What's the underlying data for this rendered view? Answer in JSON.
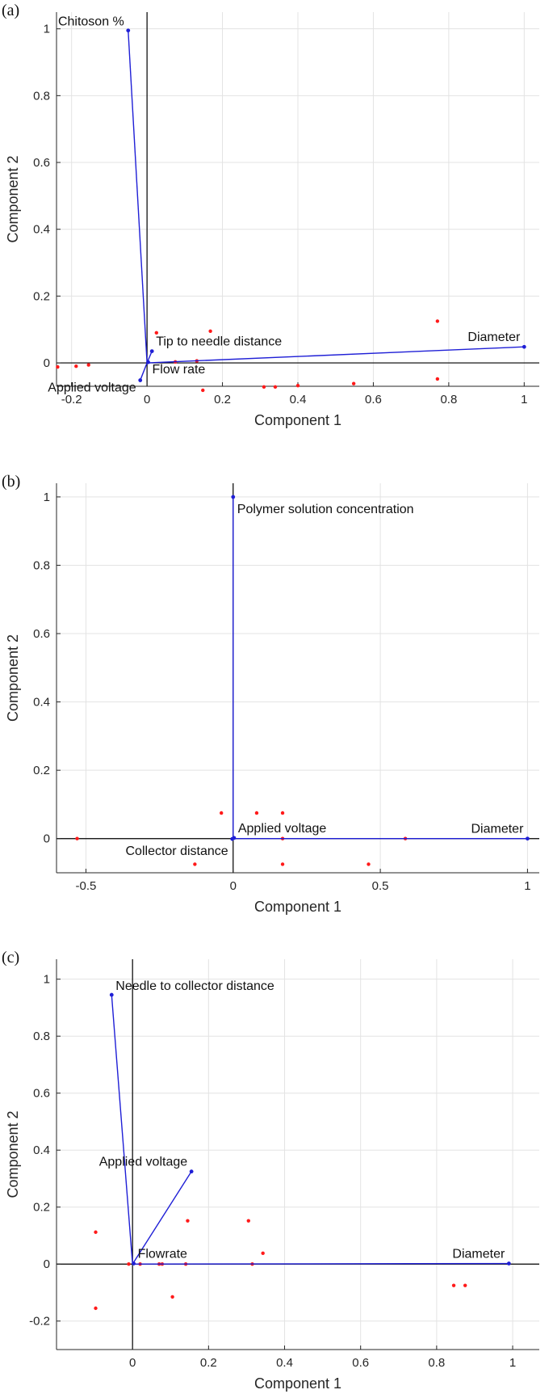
{
  "colors": {
    "vector": "#1f1fd6",
    "point": "#ff1a1a",
    "grid": "#e3e3e3",
    "axis": "#262626",
    "zero_line": "#000000"
  },
  "chart_data": [
    {
      "type": "scatter",
      "panel_label": "(a)",
      "title": "",
      "xlabel": "Component 1",
      "ylabel": "Component 2",
      "xlim": [
        -0.24,
        1.04
      ],
      "ylim": [
        -0.07,
        1.05
      ],
      "xticks": [
        -0.2,
        0,
        0.2,
        0.4,
        0.6,
        0.8,
        1
      ],
      "xtick_labels": [
        "-0.2",
        "0",
        "0.2",
        "0.4",
        "0.6",
        "0.8",
        "1"
      ],
      "yticks": [
        0,
        0.2,
        0.4,
        0.6,
        0.8,
        1
      ],
      "ytick_labels": [
        "0",
        "0.2",
        "0.4",
        "0.6",
        "0.8",
        "1"
      ],
      "grid": true,
      "vectors": [
        {
          "label": "Chitoson %",
          "x": -0.05,
          "y": 0.995,
          "anchor": "end"
        },
        {
          "label": "Tip to needle distance",
          "x": 0.013,
          "y": 0.035,
          "anchor": "start"
        },
        {
          "label": "Flow rate",
          "x": 0.003,
          "y": 0.002,
          "anchor": "start"
        },
        {
          "label": "Applied voltage",
          "x": -0.018,
          "y": -0.052,
          "anchor": "end"
        },
        {
          "label": "Diameter",
          "x": 1.0,
          "y": 0.048,
          "anchor": "end"
        }
      ],
      "points": [
        [
          -0.237,
          -0.012
        ],
        [
          -0.188,
          -0.01
        ],
        [
          -0.155,
          -0.006
        ],
        [
          0.025,
          0.09
        ],
        [
          0.168,
          0.095
        ],
        [
          0.075,
          0.003
        ],
        [
          0.132,
          0.006
        ],
        [
          0.148,
          -0.082
        ],
        [
          0.31,
          -0.072
        ],
        [
          0.34,
          -0.072
        ],
        [
          0.4,
          -0.068
        ],
        [
          0.548,
          -0.062
        ],
        [
          0.77,
          0.125
        ],
        [
          0.77,
          -0.048
        ]
      ]
    },
    {
      "type": "scatter",
      "panel_label": "(b)",
      "title": "",
      "xlabel": "Component 1",
      "ylabel": "Component 2",
      "xlim": [
        -0.6,
        1.04
      ],
      "ylim": [
        -0.1,
        1.04
      ],
      "xticks": [
        -0.5,
        0,
        0.5,
        1
      ],
      "xtick_labels": [
        "-0.5",
        "0",
        "0.5",
        "1"
      ],
      "yticks": [
        0,
        0.2,
        0.4,
        0.6,
        0.8,
        1
      ],
      "ytick_labels": [
        "0",
        "0.2",
        "0.4",
        "0.6",
        "0.8",
        "1"
      ],
      "grid": true,
      "vectors": [
        {
          "label": "Polymer solution concentration",
          "x": 0.0,
          "y": 1.0,
          "anchor": "start"
        },
        {
          "label": "Applied voltage",
          "x": 0.003,
          "y": 0.002,
          "anchor": "start"
        },
        {
          "label": "Collector distance",
          "x": -0.003,
          "y": -0.001,
          "anchor": "end"
        },
        {
          "label": "Diameter",
          "x": 1.0,
          "y": 0.0,
          "anchor": "end"
        }
      ],
      "points": [
        [
          -0.53,
          0.0
        ],
        [
          -0.13,
          -0.075
        ],
        [
          -0.04,
          0.075
        ],
        [
          0.08,
          0.075
        ],
        [
          0.168,
          0.075
        ],
        [
          0.168,
          0.0
        ],
        [
          0.168,
          -0.075
        ],
        [
          0.46,
          -0.075
        ],
        [
          0.585,
          0.0
        ]
      ]
    },
    {
      "type": "scatter",
      "panel_label": "(c)",
      "title": "",
      "xlabel": "Component 1",
      "ylabel": "Component 2",
      "xlim": [
        -0.2,
        1.07
      ],
      "ylim": [
        -0.3,
        1.07
      ],
      "xticks": [
        0,
        0.2,
        0.4,
        0.6,
        0.8,
        1
      ],
      "xtick_labels": [
        "0",
        "0.2",
        "0.4",
        "0.6",
        "0.8",
        "1"
      ],
      "yticks": [
        -0.2,
        0,
        0.2,
        0.4,
        0.6,
        0.8,
        1
      ],
      "ytick_labels": [
        "-0.2",
        "0",
        "0.2",
        "0.4",
        "0.6",
        "0.8",
        "1"
      ],
      "grid": true,
      "vectors": [
        {
          "label": "Needle to collector distance",
          "x": -0.055,
          "y": 0.945,
          "anchor": "start"
        },
        {
          "label": "Applied voltage",
          "x": 0.155,
          "y": 0.325,
          "anchor": "end"
        },
        {
          "label": "Flowrate",
          "x": 0.003,
          "y": 0.002,
          "anchor": "start"
        },
        {
          "label": "Diameter",
          "x": 0.99,
          "y": 0.002,
          "anchor": "end"
        }
      ],
      "points": [
        [
          -0.097,
          0.112
        ],
        [
          -0.097,
          -0.155
        ],
        [
          -0.01,
          0.0
        ],
        [
          0.02,
          0.0
        ],
        [
          0.07,
          0.0
        ],
        [
          0.078,
          0.0
        ],
        [
          0.105,
          -0.115
        ],
        [
          0.14,
          0.0
        ],
        [
          0.145,
          0.152
        ],
        [
          0.305,
          0.152
        ],
        [
          0.315,
          0.0
        ],
        [
          0.343,
          0.038
        ],
        [
          0.845,
          -0.075
        ],
        [
          0.875,
          -0.075
        ]
      ]
    }
  ]
}
